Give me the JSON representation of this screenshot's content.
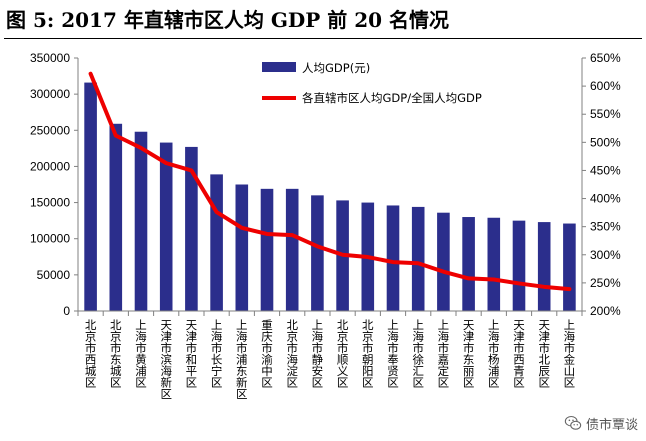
{
  "title": "图 5:  2017 年直辖市区人均 GDP 前 20 名情况",
  "watermark": {
    "text": "债市覃谈",
    "icon": "wechat-icon"
  },
  "colors": {
    "bar": "#2b2e8c",
    "line": "#ee0000",
    "axis": "#808080"
  },
  "chart_data": {
    "type": "bar",
    "title": "",
    "categories": [
      "北京市西城区",
      "北京市东城区",
      "上海市黄浦区",
      "天津市滨海新区",
      "天津市和平区",
      "上海市长宁区",
      "上海市浦东新区",
      "重庆市渝中区",
      "北京市海淀区",
      "上海市静安区",
      "北京市顺义区",
      "北京市朝阳区",
      "上海市奉贤区",
      "上海市徐汇区",
      "上海市嘉定区",
      "天津市东丽区",
      "上海市杨浦区",
      "天津市西青区",
      "天津市北辰区",
      "上海市金山区"
    ],
    "series": [
      {
        "name": "人均GDP(元)",
        "type": "bar",
        "axis": "left",
        "values": [
          316000,
          259000,
          248000,
          233000,
          227000,
          189000,
          175000,
          169000,
          169000,
          160000,
          153000,
          150000,
          146000,
          144000,
          136000,
          130000,
          129000,
          125000,
          123000,
          121000
        ]
      },
      {
        "name": "各直辖市区人均GDP/全国人均GDP",
        "type": "line",
        "axis": "right",
        "values": [
          0.622,
          0.512,
          0.49,
          0.463,
          0.45,
          0.376,
          0.348,
          0.337,
          0.335,
          0.315,
          0.3,
          0.296,
          0.287,
          0.285,
          0.27,
          0.258,
          0.256,
          0.249,
          0.243,
          0.239
        ]
      }
    ],
    "ylim_left": [
      0,
      350000
    ],
    "yticks_left": [
      "0",
      "50000",
      "100000",
      "150000",
      "200000",
      "250000",
      "300000",
      "350000"
    ],
    "ylim_right": [
      0.2,
      0.65
    ],
    "yticks_right": [
      "200%",
      "250%",
      "300%",
      "350%",
      "400%",
      "450%",
      "500%",
      "550%",
      "600%",
      "650%"
    ],
    "xlabel": "",
    "ylabel": "",
    "legend_position": "top-center",
    "grid": false
  }
}
